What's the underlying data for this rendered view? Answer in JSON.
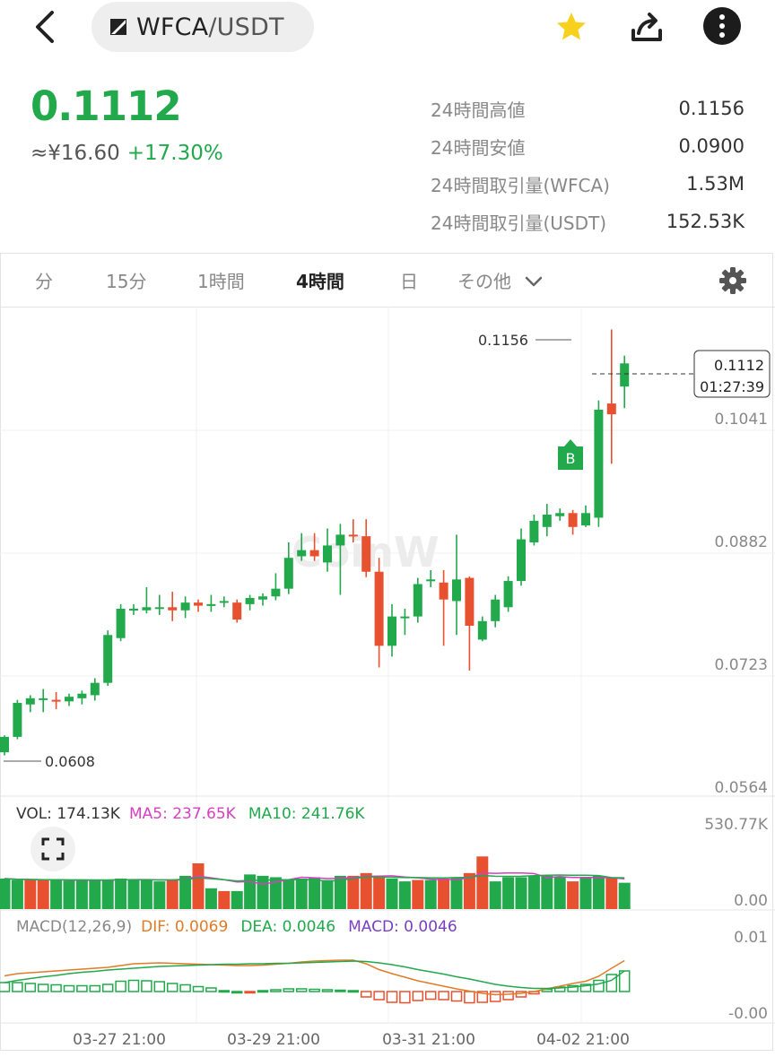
{
  "header": {
    "pair_base": "WFCA",
    "pair_quote": "/USDT",
    "icons": [
      "back-icon",
      "exchange-logo-icon",
      "star-icon",
      "share-icon",
      "more-icon"
    ]
  },
  "ticker": {
    "price": "0.1112",
    "fiat": "≈¥16.60",
    "change": "+17.30%",
    "colors": {
      "up": "#21a94c",
      "down": "#e8512f",
      "star": "#f7d11e"
    }
  },
  "stats": [
    {
      "label": "24時間高値",
      "value": "0.1156"
    },
    {
      "label": "24時間安値",
      "value": "0.0900"
    },
    {
      "label": "24時間取引量(WFCA)",
      "value": "1.53M"
    },
    {
      "label": "24時間取引量(USDT)",
      "value": "152.53K"
    }
  ],
  "tabs": [
    {
      "label": "分"
    },
    {
      "label": "15分"
    },
    {
      "label": "1時間"
    },
    {
      "label": "4時間",
      "active": true
    },
    {
      "label": "日"
    },
    {
      "label": "その他"
    }
  ],
  "chart": {
    "watermark": "CoinW",
    "high_label": "0.1156",
    "low_label": "0.0608",
    "current_price": "0.1112",
    "countdown": "01:27:39",
    "trade_marker": "B",
    "y_ticks": [
      "0.1041",
      "0.0882",
      "0.0723",
      "0.0564"
    ],
    "x_ticks": [
      "03-27 21:00",
      "03-29 21:00",
      "03-31 21:00",
      "04-02 21:00"
    ],
    "volume": {
      "vol": "VOL: 174.13K",
      "ma5": "MA5: 237.65K",
      "ma10": "MA10: 241.76K",
      "max": "530.77K",
      "min": "0.00"
    },
    "macd": {
      "title": "MACD(12,26,9)",
      "dif": "DIF: 0.0069",
      "dea": "DEA: 0.0046",
      "macd": "MACD: 0.0046",
      "max": "0.01",
      "min": "-0.00"
    }
  },
  "chart_data": {
    "type": "candlestick",
    "interval": "4時間",
    "ylim": [
      0.0564,
      0.116
    ],
    "candles": [
      [
        0.0608,
        0.0628,
        0.0604,
        0.063
      ],
      [
        0.0628,
        0.0672,
        0.0625,
        0.0676
      ],
      [
        0.067,
        0.0678,
        0.066,
        0.0682
      ],
      [
        0.0676,
        0.0678,
        0.066,
        0.069
      ],
      [
        0.0676,
        0.0674,
        0.0664,
        0.0686
      ],
      [
        0.0674,
        0.068,
        0.0668,
        0.0684
      ],
      [
        0.0678,
        0.0684,
        0.067,
        0.0688
      ],
      [
        0.0682,
        0.0698,
        0.0675,
        0.0704
      ],
      [
        0.0698,
        0.076,
        0.0694,
        0.0766
      ],
      [
        0.0756,
        0.0794,
        0.0752,
        0.08
      ],
      [
        0.0792,
        0.0794,
        0.0786,
        0.08
      ],
      [
        0.0792,
        0.0796,
        0.0788,
        0.0822
      ],
      [
        0.0794,
        0.0796,
        0.0786,
        0.0812
      ],
      [
        0.0796,
        0.0792,
        0.0778,
        0.0816
      ],
      [
        0.0792,
        0.0802,
        0.0782,
        0.081
      ],
      [
        0.0802,
        0.0798,
        0.079,
        0.0806
      ],
      [
        0.0798,
        0.08,
        0.079,
        0.0812
      ],
      [
        0.0802,
        0.0804,
        0.0796,
        0.081
      ],
      [
        0.0802,
        0.078,
        0.0776,
        0.0806
      ],
      [
        0.08,
        0.0808,
        0.0792,
        0.0812
      ],
      [
        0.0806,
        0.081,
        0.0798,
        0.0814
      ],
      [
        0.081,
        0.082,
        0.0805,
        0.084
      ],
      [
        0.082,
        0.086,
        0.0813,
        0.088
      ],
      [
        0.0862,
        0.087,
        0.0856,
        0.0892
      ],
      [
        0.087,
        0.0862,
        0.0856,
        0.0892
      ],
      [
        0.0854,
        0.0876,
        0.0842,
        0.0898
      ],
      [
        0.0876,
        0.089,
        0.0812,
        0.0904
      ],
      [
        0.089,
        0.0888,
        0.088,
        0.091
      ],
      [
        0.0888,
        0.0842,
        0.0835,
        0.091
      ],
      [
        0.0842,
        0.0746,
        0.0718,
        0.086
      ],
      [
        0.0746,
        0.0784,
        0.0732,
        0.08
      ],
      [
        0.0782,
        0.0784,
        0.076,
        0.0794
      ],
      [
        0.0784,
        0.0826,
        0.0776,
        0.0834
      ],
      [
        0.083,
        0.0832,
        0.0822,
        0.0844
      ],
      [
        0.0828,
        0.0806,
        0.0746,
        0.0844
      ],
      [
        0.0804,
        0.0832,
        0.076,
        0.089
      ],
      [
        0.0834,
        0.0772,
        0.0714,
        0.0836
      ],
      [
        0.0754,
        0.0778,
        0.0752,
        0.0784
      ],
      [
        0.0778,
        0.0806,
        0.077,
        0.0812
      ],
      [
        0.0796,
        0.083,
        0.079,
        0.0836
      ],
      [
        0.083,
        0.0884,
        0.0824,
        0.0898
      ],
      [
        0.088,
        0.0908,
        0.0876,
        0.0916
      ],
      [
        0.09,
        0.0916,
        0.0888,
        0.093
      ],
      [
        0.0914,
        0.0918,
        0.0908,
        0.0924
      ],
      [
        0.0918,
        0.09,
        0.089,
        0.0922
      ],
      [
        0.0902,
        0.0918,
        0.09,
        0.0928
      ],
      [
        0.0912,
        0.1052,
        0.09,
        0.1064
      ],
      [
        0.106,
        0.1046,
        0.0982,
        0.1156
      ],
      [
        0.1082,
        0.1112,
        0.1054,
        0.1122
      ]
    ],
    "volume_max": 530.77,
    "volume": [
      [
        220,
        1
      ],
      [
        210,
        1
      ],
      [
        210,
        0
      ],
      [
        210,
        0
      ],
      [
        210,
        1
      ],
      [
        205,
        1
      ],
      [
        210,
        1
      ],
      [
        210,
        1
      ],
      [
        210,
        1
      ],
      [
        220,
        1
      ],
      [
        215,
        1
      ],
      [
        210,
        1
      ],
      [
        200,
        1
      ],
      [
        210,
        0
      ],
      [
        240,
        1
      ],
      [
        330,
        0
      ],
      [
        150,
        1
      ],
      [
        130,
        0
      ],
      [
        130,
        1
      ],
      [
        250,
        1
      ],
      [
        240,
        1
      ],
      [
        230,
        1
      ],
      [
        210,
        1
      ],
      [
        220,
        1
      ],
      [
        230,
        1
      ],
      [
        210,
        1
      ],
      [
        240,
        1
      ],
      [
        240,
        0
      ],
      [
        260,
        0
      ],
      [
        240,
        0
      ],
      [
        220,
        1
      ],
      [
        200,
        1
      ],
      [
        210,
        0
      ],
      [
        210,
        1
      ],
      [
        220,
        0
      ],
      [
        230,
        1
      ],
      [
        260,
        0
      ],
      [
        380,
        0
      ],
      [
        200,
        1
      ],
      [
        230,
        1
      ],
      [
        230,
        1
      ],
      [
        240,
        1
      ],
      [
        240,
        1
      ],
      [
        230,
        1
      ],
      [
        200,
        0
      ],
      [
        230,
        1
      ],
      [
        240,
        1
      ],
      [
        230,
        0
      ],
      [
        190,
        1
      ]
    ],
    "macd_hist": [
      0.002,
      0.002,
      0.0018,
      0.0016,
      0.0015,
      0.0013,
      0.0013,
      0.0013,
      0.0016,
      0.0023,
      0.0025,
      0.0024,
      0.0022,
      0.0018,
      0.0015,
      0.0011,
      0.0008,
      0.0002,
      0.0,
      -0.0001,
      0.0002,
      0.0004,
      0.0006,
      0.0006,
      0.0005,
      0.0004,
      0.0003,
      0.0002,
      -0.0012,
      -0.0018,
      -0.0024,
      -0.0025,
      -0.002,
      -0.0017,
      -0.0018,
      -0.0021,
      -0.0025,
      -0.0024,
      -0.0022,
      -0.0018,
      -0.0012,
      -0.0005,
      0.0005,
      0.001,
      0.0013,
      0.0016,
      0.0025,
      0.0038,
      0.0046
    ],
    "dif": [
      0.0035,
      0.004,
      0.0042,
      0.0044,
      0.0046,
      0.0048,
      0.005,
      0.0052,
      0.0054,
      0.0058,
      0.0062,
      0.0063,
      0.0064,
      0.0063,
      0.0062,
      0.0061,
      0.006,
      0.0059,
      0.0058,
      0.0058,
      0.0059,
      0.0061,
      0.0063,
      0.0066,
      0.0068,
      0.0069,
      0.007,
      0.007,
      0.0062,
      0.0049,
      0.004,
      0.0032,
      0.0024,
      0.0018,
      0.0012,
      0.0006,
      0.0001,
      -0.0004,
      -0.0007,
      -0.0006,
      -0.0004,
      0.0,
      0.0006,
      0.0012,
      0.0018,
      0.0023,
      0.0034,
      0.0052,
      0.0069
    ],
    "dea": [
      0.002,
      0.0025,
      0.0029,
      0.0033,
      0.0036,
      0.004,
      0.0043,
      0.0045,
      0.0048,
      0.005,
      0.0052,
      0.0054,
      0.0056,
      0.0057,
      0.0058,
      0.0059,
      0.006,
      0.0061,
      0.0061,
      0.0062,
      0.0062,
      0.0063,
      0.0063,
      0.0064,
      0.0065,
      0.0066,
      0.0067,
      0.0068,
      0.0067,
      0.0064,
      0.006,
      0.0055,
      0.0049,
      0.0044,
      0.0039,
      0.0033,
      0.0028,
      0.0022,
      0.0016,
      0.0012,
      0.0009,
      0.0007,
      0.0007,
      0.0008,
      0.001,
      0.0013,
      0.0017,
      0.0025,
      0.0046
    ]
  }
}
